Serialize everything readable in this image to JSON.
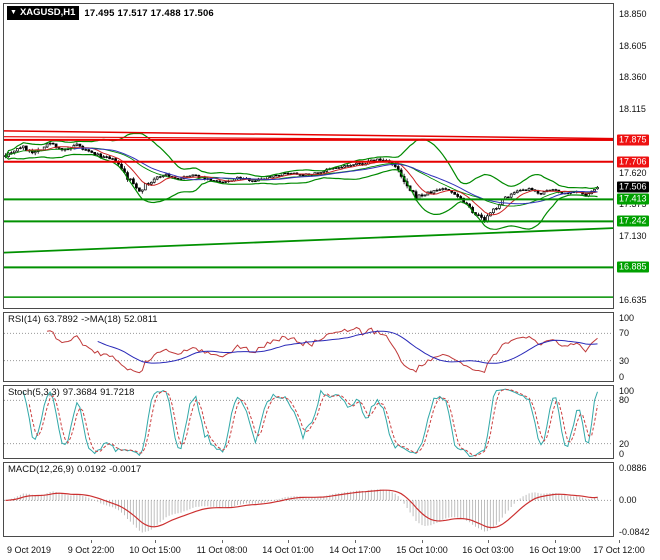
{
  "window": {
    "dropdown_glyph": "▼",
    "symbol": "XAGUSD,H1",
    "ohlc": "17.495 17.517 17.488 17.506"
  },
  "colors": {
    "line_red": "#e60000",
    "line_green": "#009100",
    "badge_red": "#ee1111",
    "badge_green": "#00a000",
    "badge_black": "#000000",
    "bb": "#008a00",
    "ma_fast": "#cc2222",
    "ma_slow": "#3333bb",
    "rsi": "#c03a3a",
    "rsi_ma": "#2929b8",
    "stoch_k": "#31a8a8",
    "stoch_d": "#cc4040",
    "macd_hist": "#bfbfbf",
    "macd_signal": "#cc3030",
    "dotted": "#9a9a9a",
    "candle": "#000000"
  },
  "price_axis": {
    "ticks": [
      "18.850",
      "18.605",
      "18.360",
      "18.115",
      "17.620",
      "17.375",
      "17.130",
      "16.635"
    ],
    "badges": [
      {
        "label": "17.875",
        "color": "red"
      },
      {
        "label": "17.706",
        "color": "red"
      },
      {
        "label": "17.506",
        "color": "black"
      },
      {
        "label": "17.413",
        "color": "green"
      },
      {
        "label": "17.242",
        "color": "green"
      },
      {
        "label": "16.885",
        "color": "green"
      }
    ]
  },
  "panels": {
    "rsi": {
      "name": "RSI(14)",
      "value": "63.7892",
      "ma_name": "->MA(18)",
      "ma_value": "52.0811",
      "range": [
        0,
        100
      ],
      "dotted": [
        70,
        30
      ],
      "axis": [
        {
          "t": "100",
          "v": 100
        },
        {
          "t": "70",
          "v": 70
        },
        {
          "t": "30",
          "v": 30
        },
        {
          "t": "0",
          "v": 0
        }
      ]
    },
    "stoch": {
      "name": "Stoch(5,3,3)",
      "k": "97.3684",
      "d": "91.7218",
      "range": [
        0,
        100
      ],
      "dotted": [
        80,
        20
      ],
      "axis": [
        {
          "t": "100",
          "v": 100
        },
        {
          "t": "80",
          "v": 80
        },
        {
          "t": "20",
          "v": 20
        },
        {
          "t": "0",
          "v": 0
        }
      ]
    },
    "macd": {
      "name": "MACD(12,26,9)",
      "main": "0.0192",
      "signal": "-0.0017",
      "range": [
        -0.0842,
        0.0886
      ],
      "dotted": [
        0
      ],
      "axis": [
        {
          "t": "0.0886",
          "v": 0.0886
        },
        {
          "t": "0.00",
          "v": 0
        },
        {
          "t": "-0.0842",
          "v": -0.0842
        }
      ]
    }
  },
  "time_axis": {
    "labels": [
      {
        "label": "9 Oct 2019",
        "f": 0.03
      },
      {
        "label": "9 Oct 22:00",
        "f": 0.138
      },
      {
        "label": "10 Oct 15:00",
        "f": 0.243
      },
      {
        "label": "11 Oct 08:00",
        "f": 0.353
      },
      {
        "label": "14 Oct 01:00",
        "f": 0.461
      },
      {
        "label": "14 Oct 17:00",
        "f": 0.571
      },
      {
        "label": "15 Oct 10:00",
        "f": 0.681
      },
      {
        "label": "16 Oct 03:00",
        "f": 0.79
      },
      {
        "label": "16 Oct 19:00",
        "f": 0.9
      },
      {
        "label": "17 Oct 12:00",
        "f": 1.005
      }
    ]
  },
  "chart_data": {
    "type": "candlestick",
    "symbol": "XAGUSD",
    "timeframe": "H1",
    "last_quote": {
      "open": 17.495,
      "high": 17.517,
      "low": 17.488,
      "close": 17.506
    },
    "price_range": [
      16.57,
      18.93
    ],
    "y_ticks": [
      18.85,
      18.605,
      18.36,
      18.115,
      17.87,
      17.62,
      17.375,
      17.13,
      16.885,
      16.635
    ],
    "n_bars": 200,
    "seed": 7,
    "price_anchors": [
      [
        0,
        17.76,
        0.03
      ],
      [
        5,
        17.82,
        0.032
      ],
      [
        10,
        17.78,
        0.032
      ],
      [
        15,
        17.85,
        0.03
      ],
      [
        20,
        17.79,
        0.028
      ],
      [
        24,
        17.83,
        0.026
      ],
      [
        28,
        17.78,
        0.024
      ],
      [
        33,
        17.74,
        0.022
      ],
      [
        37,
        17.71,
        0.025
      ],
      [
        41,
        17.58,
        0.042
      ],
      [
        45,
        17.49,
        0.04
      ],
      [
        49,
        17.55,
        0.03
      ],
      [
        53,
        17.61,
        0.022
      ],
      [
        58,
        17.57,
        0.018
      ],
      [
        63,
        17.6,
        0.016
      ],
      [
        68,
        17.57,
        0.016
      ],
      [
        73,
        17.54,
        0.016
      ],
      [
        78,
        17.58,
        0.016
      ],
      [
        84,
        17.56,
        0.018
      ],
      [
        90,
        17.6,
        0.018
      ],
      [
        96,
        17.62,
        0.02
      ],
      [
        102,
        17.6,
        0.02
      ],
      [
        108,
        17.64,
        0.02
      ],
      [
        114,
        17.67,
        0.022
      ],
      [
        120,
        17.69,
        0.024
      ],
      [
        125,
        17.72,
        0.026
      ],
      [
        129,
        17.71,
        0.028
      ],
      [
        132,
        17.63,
        0.042
      ],
      [
        135,
        17.5,
        0.048
      ],
      [
        138,
        17.43,
        0.035
      ],
      [
        142,
        17.46,
        0.026
      ],
      [
        147,
        17.5,
        0.022
      ],
      [
        151,
        17.46,
        0.024
      ],
      [
        155,
        17.38,
        0.03
      ],
      [
        158,
        17.3,
        0.032
      ],
      [
        161,
        17.25,
        0.03
      ],
      [
        164,
        17.33,
        0.028
      ],
      [
        168,
        17.43,
        0.024
      ],
      [
        172,
        17.47,
        0.02
      ],
      [
        176,
        17.49,
        0.018
      ],
      [
        180,
        17.46,
        0.018
      ],
      [
        184,
        17.49,
        0.016
      ],
      [
        188,
        17.46,
        0.016
      ],
      [
        192,
        17.48,
        0.015
      ],
      [
        195,
        17.44,
        0.015
      ],
      [
        199,
        17.51,
        0.012
      ]
    ],
    "levels": [
      {
        "kind": "h",
        "price": 17.875,
        "color": "red",
        "w": 2
      },
      {
        "kind": "h",
        "price": 17.706,
        "color": "red",
        "w": 2
      },
      {
        "kind": "h",
        "price": 17.413,
        "color": "green",
        "w": 2
      },
      {
        "kind": "h",
        "price": 17.242,
        "color": "green",
        "w": 2
      },
      {
        "kind": "h",
        "price": 16.885,
        "color": "green",
        "w": 2
      },
      {
        "kind": "h",
        "price": 16.655,
        "color": "green",
        "w": 1.5
      },
      {
        "kind": "t",
        "p1": 17.945,
        "p2": 17.885,
        "color": "red",
        "w": 1.5
      },
      {
        "kind": "t",
        "p1": 17.9,
        "p2": 17.872,
        "color": "red",
        "w": 1.2
      },
      {
        "kind": "t",
        "p1": 17.0,
        "p2": 17.19,
        "color": "green",
        "w": 1.8
      }
    ],
    "overlays": {
      "bollinger": {
        "period": 20,
        "deviation": 2.4
      },
      "ma_fast_period": 8,
      "ma_slow_period": 24
    },
    "indicators": {
      "rsi": {
        "period": 14,
        "ma_period": 18,
        "display_value": 63.7892,
        "display_ma": 52.0811,
        "levels": [
          100,
          70,
          30,
          0
        ]
      },
      "stoch": {
        "k": 5,
        "slowing": 3,
        "d": 3,
        "display_k": 97.3684,
        "display_d": 91.7218,
        "levels": [
          100,
          80,
          20,
          0
        ]
      },
      "macd": {
        "fast": 12,
        "slow": 26,
        "signal": 9,
        "display_main": 0.0192,
        "display_signal": -0.0017,
        "range": [
          -0.0842,
          0.0886
        ]
      }
    },
    "x_labels": [
      "9 Oct 2019",
      "9 Oct 22:00",
      "10 Oct 15:00",
      "11 Oct 08:00",
      "14 Oct 01:00",
      "14 Oct 17:00",
      "15 Oct 10:00",
      "16 Oct 03:00",
      "16 Oct 19:00",
      "17 Oct 12:00"
    ]
  }
}
